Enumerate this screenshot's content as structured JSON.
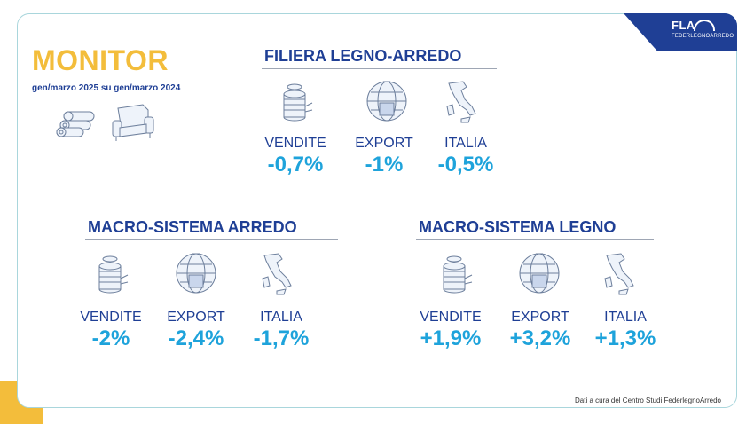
{
  "header": {
    "title": "MONITOR",
    "subtitle": "gen/marzo 2025 su gen/marzo 2024"
  },
  "logo": {
    "text": "FLA",
    "subtext": "FEDERLEGNOARREDO"
  },
  "colors": {
    "title_yellow": "#f3bd3b",
    "navy": "#1f3f95",
    "value_blue": "#1ea3db"
  },
  "sections": [
    {
      "title": "FILIERA LEGNO-ARREDO",
      "metrics": [
        {
          "icon": "coins-stack-icon",
          "label": "VENDITE",
          "value": "-0,7%"
        },
        {
          "icon": "globe-export-icon",
          "label": "EXPORT",
          "value": "-1%"
        },
        {
          "icon": "italy-map-icon",
          "label": "ITALIA",
          "value": "-0,5%"
        }
      ]
    },
    {
      "title": "MACRO-SISTEMA ARREDO",
      "metrics": [
        {
          "icon": "coins-stack-icon",
          "label": "VENDITE",
          "value": "-2%"
        },
        {
          "icon": "globe-export-icon",
          "label": "EXPORT",
          "value": "-2,4%"
        },
        {
          "icon": "italy-map-icon",
          "label": "ITALIA",
          "value": "-1,7%"
        }
      ]
    },
    {
      "title": "MACRO-SISTEMA LEGNO",
      "metrics": [
        {
          "icon": "coins-stack-icon",
          "label": "VENDITE",
          "value": "+1,9%"
        },
        {
          "icon": "globe-export-icon",
          "label": "EXPORT",
          "value": "+3,2%"
        },
        {
          "icon": "italy-map-icon",
          "label": "ITALIA",
          "value": "+1,3%"
        }
      ]
    }
  ],
  "footer": "Dati a cura del Centro Studi FederlegnoArredo"
}
